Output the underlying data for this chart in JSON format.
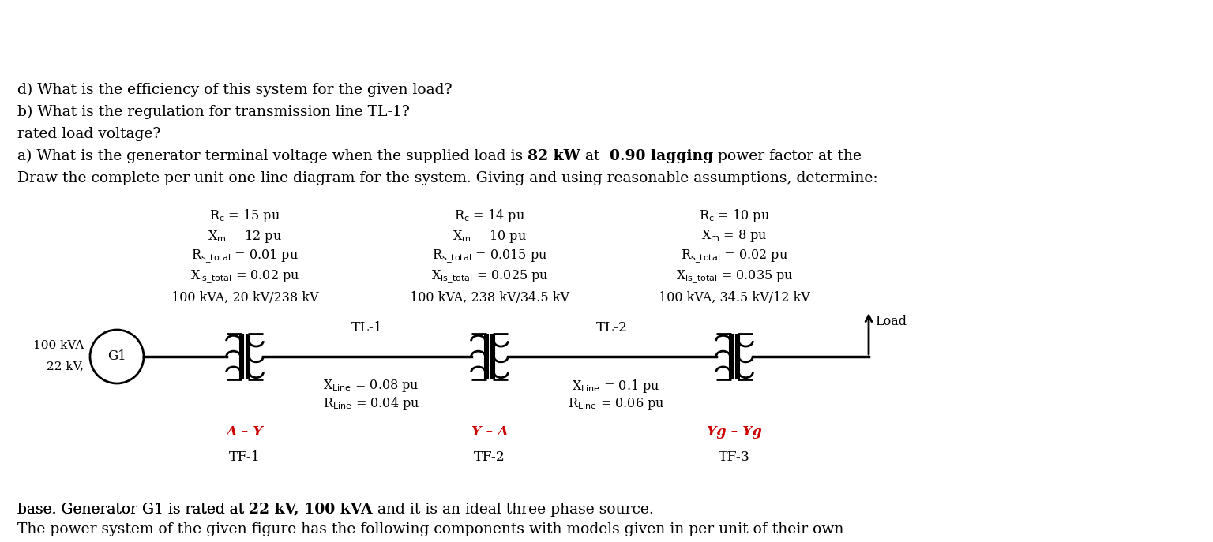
{
  "bg_color": "#ffffff",
  "red_color": "#cc0000",
  "tf_labels": [
    "TF-1",
    "TF-2",
    "TF-3"
  ],
  "winding_labels": [
    "Δ – Y",
    "Y – Δ",
    "Yg – Yg"
  ],
  "tl1_r": "R$_{\\mathrm{Line}}$ = 0.04 pu",
  "tl1_x": "X$_{\\mathrm{Line}}$ = 0.08 pu",
  "tl2_r": "R$_{\\mathrm{Line}}$ = 0.06 pu",
  "tl2_x": "X$_{\\mathrm{Line}}$ = 0.1 pu",
  "tf1_data": [
    "100 kVA, 20 kV/238 kV",
    "X$_{\\mathrm{ls\\_total}}$ = 0.02 pu",
    "R$_{\\mathrm{s\\_total}}$ = 0.01 pu",
    "X$_{\\mathrm{m}}$ = 12 pu",
    "R$_{\\mathrm{c}}$ = 15 pu"
  ],
  "tf2_data": [
    "100 kVA, 238 kV/34.5 kV",
    "X$_{\\mathrm{ls\\_total}}$ = 0.025 pu",
    "R$_{\\mathrm{s\\_total}}$ = 0.015 pu",
    "X$_{\\mathrm{m}}$ = 10 pu",
    "R$_{\\mathrm{c}}$ = 14 pu"
  ],
  "tf3_data": [
    "100 kVA, 34.5 kV/12 kV",
    "X$_{\\mathrm{ls\\_total}}$ = 0.035 pu",
    "R$_{\\mathrm{s\\_total}}$ = 0.02 pu",
    "X$_{\\mathrm{m}}$ = 8 pu",
    "R$_{\\mathrm{c}}$ = 10 pu"
  ]
}
